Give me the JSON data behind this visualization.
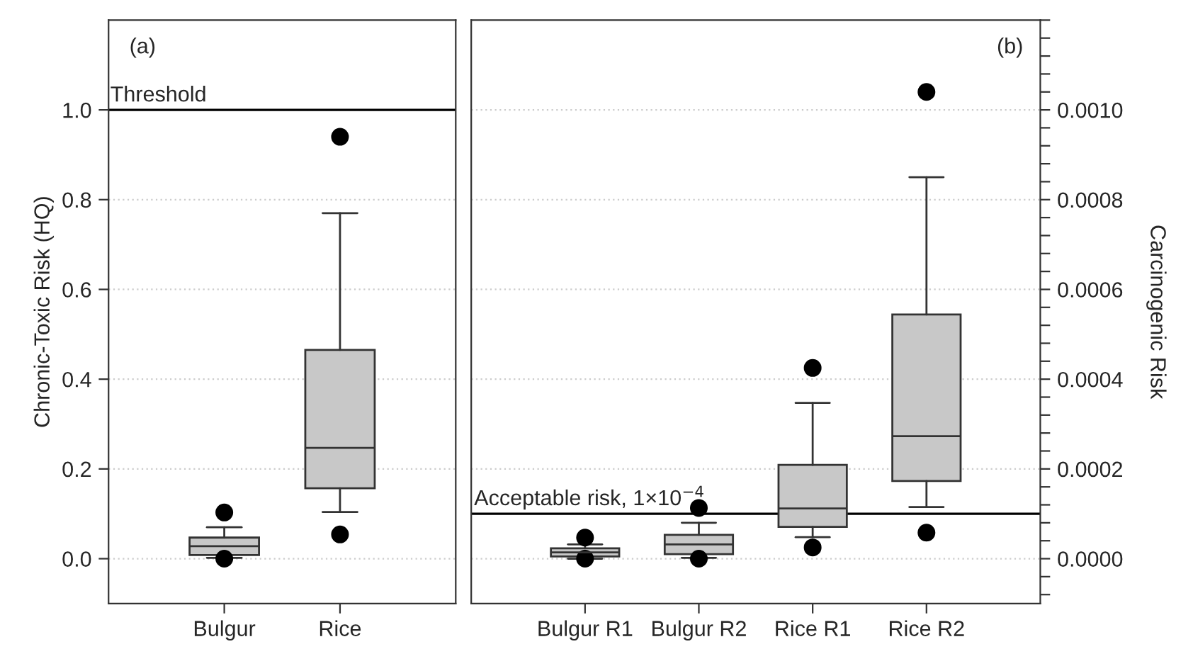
{
  "chart_data": [
    {
      "type": "box",
      "ylabel": "Chronic-Toxic Risk (HQ)",
      "categories": [
        "Bulgur",
        "Rice"
      ],
      "boxes": [
        {
          "low": 0.002,
          "q1": 0.008,
          "median": 0.028,
          "q3": 0.047,
          "high": 0.07,
          "outliers": [
            0.103,
            0.0
          ]
        },
        {
          "low": 0.104,
          "q1": 0.157,
          "median": 0.247,
          "q3": 0.465,
          "high": 0.77,
          "outliers": [
            0.94,
            0.054
          ]
        }
      ],
      "color": "#c8c8c8",
      "ylim": [
        -0.1,
        1.2
      ],
      "yticks": [
        {
          "value": 0,
          "label": "0.0"
        },
        {
          "value": 0.2,
          "label": "0.2"
        },
        {
          "value": 0.4,
          "label": "0.4"
        },
        {
          "value": 0.6,
          "label": "0.6"
        },
        {
          "value": 0.8,
          "label": "0.8"
        },
        {
          "value": 1.0,
          "label": "1.0"
        }
      ],
      "grid": "y",
      "ref_lines": [
        {
          "axis": "y",
          "value": 1.0,
          "label": "Threshold"
        }
      ],
      "annotations": [
        "(a)"
      ]
    },
    {
      "type": "box",
      "ylabel": "Carcinogenic Risk",
      "categories": [
        "Bulgur R1",
        "Bulgur R2",
        "Rice R1",
        "Rice R2"
      ],
      "boxes": [
        {
          "low": 0.0,
          "q1": 5e-06,
          "median": 1.4e-05,
          "q3": 2.3e-05,
          "high": 3.2e-05,
          "outliers": [
            4.7e-05,
            0.0
          ]
        },
        {
          "low": 2e-06,
          "q1": 1e-05,
          "median": 3.2e-05,
          "q3": 5.3e-05,
          "high": 8e-05,
          "outliers": [
            0.000113,
            0.0
          ]
        },
        {
          "low": 4.8e-05,
          "q1": 7.1e-05,
          "median": 0.000112,
          "q3": 0.000209,
          "high": 0.000347,
          "outliers": [
            0.000425,
            2.5e-05
          ]
        },
        {
          "low": 0.000115,
          "q1": 0.000173,
          "median": 0.000273,
          "q3": 0.000544,
          "high": 0.00085,
          "outliers": [
            0.00104,
            5.8e-05
          ]
        }
      ],
      "color": "#c8c8c8",
      "ylim": [
        -0.0001,
        0.0012
      ],
      "yticks": [
        {
          "value": -8e-05,
          "label": null
        },
        {
          "value": -4e-05,
          "label": null
        },
        {
          "value": 0,
          "label": "0.0000"
        },
        {
          "value": 4e-05,
          "label": null
        },
        {
          "value": 8e-05,
          "label": null
        },
        {
          "value": 0.00012,
          "label": null
        },
        {
          "value": 0.00016,
          "label": null
        },
        {
          "value": 0.0002,
          "label": "0.0002"
        },
        {
          "value": 0.00024,
          "label": null
        },
        {
          "value": 0.00028,
          "label": null
        },
        {
          "value": 0.00032,
          "label": null
        },
        {
          "value": 0.00036,
          "label": null
        },
        {
          "value": 0.0004,
          "label": "0.0004"
        },
        {
          "value": 0.00044,
          "label": null
        },
        {
          "value": 0.00048,
          "label": null
        },
        {
          "value": 0.00052,
          "label": null
        },
        {
          "value": 0.00056,
          "label": null
        },
        {
          "value": 0.0006,
          "label": "0.0006"
        },
        {
          "value": 0.00064,
          "label": null
        },
        {
          "value": 0.00068,
          "label": null
        },
        {
          "value": 0.00072,
          "label": null
        },
        {
          "value": 0.00076,
          "label": null
        },
        {
          "value": 0.0008,
          "label": "0.0008"
        },
        {
          "value": 0.00084,
          "label": null
        },
        {
          "value": 0.00088,
          "label": null
        },
        {
          "value": 0.00092,
          "label": null
        },
        {
          "value": 0.00096,
          "label": null
        },
        {
          "value": 0.001,
          "label": "0.0010"
        },
        {
          "value": 0.00104,
          "label": null
        },
        {
          "value": 0.00108,
          "label": null
        },
        {
          "value": 0.00112,
          "label": null
        },
        {
          "value": 0.00116,
          "label": null
        },
        {
          "value": 0.0012,
          "label": null
        }
      ],
      "grid": "y",
      "ref_lines": [
        {
          "axis": "y",
          "value": 0.0001,
          "label": "Acceptable risk, 1×10$^{−4}$"
        }
      ],
      "annotations": [
        "(b)"
      ]
    }
  ]
}
